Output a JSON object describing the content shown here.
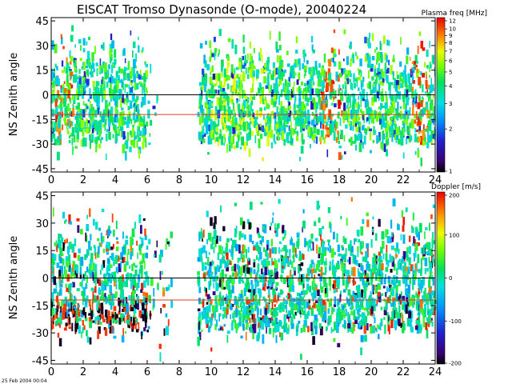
{
  "figure": {
    "title": "EISCAT Tromso Dynasonde (O-mode),  20040224",
    "timestamp": "25 Feb 2004 00:04"
  },
  "chart_data": [
    {
      "type": "scatter",
      "name": "plasma-frequency-panel",
      "ylabel": "NS Zenith angle",
      "xlabel": "",
      "xlim": [
        0,
        24
      ],
      "ylim": [
        -47,
        47
      ],
      "x_ticks": [
        "0",
        "2",
        "4",
        "6",
        "8",
        "10",
        "12",
        "14",
        "16",
        "18",
        "20",
        "22",
        "24"
      ],
      "y_ticks": [
        "45",
        "30",
        "15",
        "0",
        "-15",
        "-30",
        "-45"
      ],
      "reference_lines": [
        {
          "y": 0,
          "color": "#000000"
        },
        {
          "y": -12,
          "color": "#e43a1c"
        }
      ],
      "data_gap_hours": [
        6.8,
        9.2
      ],
      "colorbar": {
        "label": "Plasma freq [MHz]",
        "scale": "log",
        "range": [
          1,
          12
        ],
        "ticks": [
          "12",
          "10",
          "9",
          "8",
          "7",
          "6",
          "5",
          "4",
          "3",
          "2",
          "1"
        ]
      }
    },
    {
      "type": "scatter",
      "name": "doppler-panel",
      "ylabel": "NS Zenith angle",
      "xlabel": "",
      "xlim": [
        0,
        24
      ],
      "ylim": [
        -47,
        47
      ],
      "x_ticks": [
        "0",
        "2",
        "4",
        "6",
        "8",
        "10",
        "12",
        "14",
        "16",
        "18",
        "20",
        "22",
        "24"
      ],
      "y_ticks": [
        "45",
        "30",
        "15",
        "0",
        "-15",
        "-30",
        "-45"
      ],
      "reference_lines": [
        {
          "y": 0,
          "color": "#000000"
        },
        {
          "y": -12,
          "color": "#e43a1c"
        }
      ],
      "data_gap_hours": [
        7.6,
        9.2
      ],
      "colorbar": {
        "label": "Doppler [m/s]",
        "scale": "linear",
        "range": [
          -200,
          200
        ],
        "ticks": [
          "200",
          "100",
          "0",
          "-100",
          "-200"
        ]
      }
    }
  ]
}
